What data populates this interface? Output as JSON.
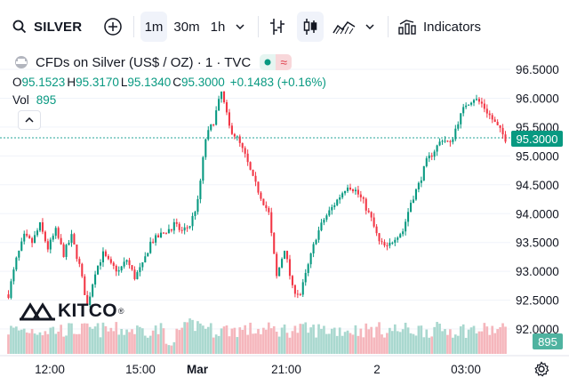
{
  "toolbar": {
    "symbol": "SILVER",
    "intervals": [
      "1m",
      "30m",
      "1h"
    ],
    "selected_interval": "1m",
    "indicators_label": "Indicators"
  },
  "legend": {
    "title": "CFDs on Silver (US$ / OZ) · 1 · TVC",
    "o_key": "O",
    "o_val": "95.1523",
    "h_key": "H",
    "h_val": "95.3170",
    "l_key": "L",
    "l_val": "95.1340",
    "c_key": "C",
    "c_val": "95.3000",
    "change": "+0.1483 (+0.16%)",
    "vol_label": "Vol",
    "vol_val": "895"
  },
  "price_axis": {
    "ticks": [
      "96.5000",
      "96.0000",
      "95.5000",
      "95.0000",
      "94.5000",
      "94.0000",
      "93.5000",
      "93.0000",
      "92.5000",
      "92.0000"
    ],
    "current_price": "95.3000",
    "current_volume": "895"
  },
  "time_axis": {
    "ticks": [
      "12:00",
      "15:00",
      "Mar",
      "21:00",
      "2",
      "03:00"
    ]
  },
  "watermark": "KITCO",
  "colors": {
    "up": "#089981",
    "down": "#f23645",
    "vol_up": "#a9d8cf",
    "vol_down": "#f5b6bc"
  },
  "chart_data": {
    "type": "candlestick",
    "title": "CFDs on Silver (US$ / OZ) · 1 · TVC",
    "ylim": [
      91.8,
      96.7
    ],
    "x_ticks": [
      "12:00",
      "15:00",
      "Mar",
      "21:00",
      "2",
      "03:00"
    ],
    "anchors": [
      [
        0,
        92.6
      ],
      [
        3,
        93.2
      ],
      [
        6,
        93.6
      ],
      [
        9,
        93.5
      ],
      [
        12,
        93.8
      ],
      [
        15,
        93.4
      ],
      [
        18,
        93.7
      ],
      [
        21,
        93.3
      ],
      [
        24,
        93.6
      ],
      [
        27,
        93.1
      ],
      [
        30,
        92.4
      ],
      [
        33,
        93.0
      ],
      [
        36,
        93.3
      ],
      [
        39,
        93.1
      ],
      [
        42,
        93.0
      ],
      [
        45,
        93.2
      ],
      [
        48,
        92.9
      ],
      [
        51,
        93.1
      ],
      [
        54,
        93.5
      ],
      [
        57,
        93.6
      ],
      [
        60,
        93.7
      ],
      [
        63,
        93.8
      ],
      [
        66,
        93.7
      ],
      [
        69,
        93.8
      ],
      [
        72,
        94.2
      ],
      [
        75,
        95.3
      ],
      [
        78,
        95.6
      ],
      [
        81,
        96.1
      ],
      [
        84,
        95.5
      ],
      [
        87,
        95.3
      ],
      [
        90,
        95.0
      ],
      [
        93,
        94.6
      ],
      [
        96,
        94.3
      ],
      [
        99,
        94.0
      ],
      [
        102,
        92.9
      ],
      [
        105,
        93.4
      ],
      [
        108,
        92.7
      ],
      [
        111,
        92.6
      ],
      [
        114,
        93.1
      ],
      [
        117,
        93.6
      ],
      [
        120,
        93.9
      ],
      [
        123,
        94.1
      ],
      [
        126,
        94.3
      ],
      [
        129,
        94.5
      ],
      [
        132,
        94.4
      ],
      [
        135,
        94.2
      ],
      [
        138,
        93.9
      ],
      [
        141,
        93.5
      ],
      [
        144,
        93.4
      ],
      [
        147,
        93.6
      ],
      [
        150,
        93.7
      ],
      [
        153,
        94.2
      ],
      [
        156,
        94.5
      ],
      [
        159,
        94.9
      ],
      [
        162,
        95.1
      ],
      [
        165,
        95.3
      ],
      [
        168,
        95.2
      ],
      [
        171,
        95.6
      ],
      [
        174,
        95.9
      ],
      [
        177,
        96.0
      ],
      [
        180,
        95.9
      ],
      [
        183,
        95.7
      ],
      [
        186,
        95.5
      ],
      [
        189,
        95.3
      ]
    ],
    "volume_level": "low-to-moderate, spike near Mar session open"
  }
}
